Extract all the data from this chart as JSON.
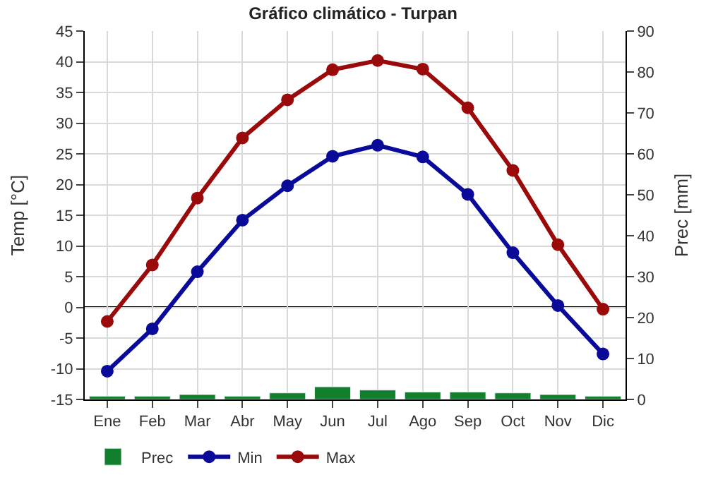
{
  "chart_data": {
    "type": "line",
    "title": "Gráfico climático - Turpan",
    "ylabel": "Temp [°C]",
    "y2label": "Prec [mm]",
    "categories": [
      "Ene",
      "Feb",
      "Mar",
      "Abr",
      "May",
      "Jun",
      "Jul",
      "Ago",
      "Sep",
      "Oct",
      "Nov",
      "Dic"
    ],
    "series": [
      {
        "name": "Prec",
        "type": "bar",
        "axis": "y2",
        "color": "#127f2f",
        "values": [
          0.8,
          0.8,
          1.2,
          0.8,
          1.6,
          3.1,
          2.3,
          1.8,
          1.8,
          1.6,
          1.2,
          0.8
        ]
      },
      {
        "name": "Min",
        "color": "#0a0a9a",
        "values": [
          -10.4,
          -3.5,
          5.8,
          14.2,
          19.8,
          24.6,
          26.4,
          24.5,
          18.4,
          8.9,
          0.3,
          -7.6
        ]
      },
      {
        "name": "Max",
        "color": "#9b0a0a",
        "values": [
          -2.3,
          6.9,
          17.8,
          27.6,
          33.8,
          38.7,
          40.2,
          38.8,
          32.5,
          22.3,
          10.2,
          -0.3
        ]
      }
    ],
    "ylim": [
      -15,
      45
    ],
    "yticks": [
      -15,
      -10,
      -5,
      0,
      5,
      10,
      15,
      20,
      25,
      30,
      35,
      40,
      45
    ],
    "y2lim": [
      0,
      90
    ],
    "y2ticks": [
      0,
      10,
      20,
      30,
      40,
      50,
      60,
      70,
      80,
      90
    ],
    "ref_lines": [
      {
        "axis": "y",
        "value": 0,
        "color": "#000000"
      }
    ],
    "grid": true,
    "legend": "bottom",
    "marker": "circle",
    "line_style": "solid"
  }
}
